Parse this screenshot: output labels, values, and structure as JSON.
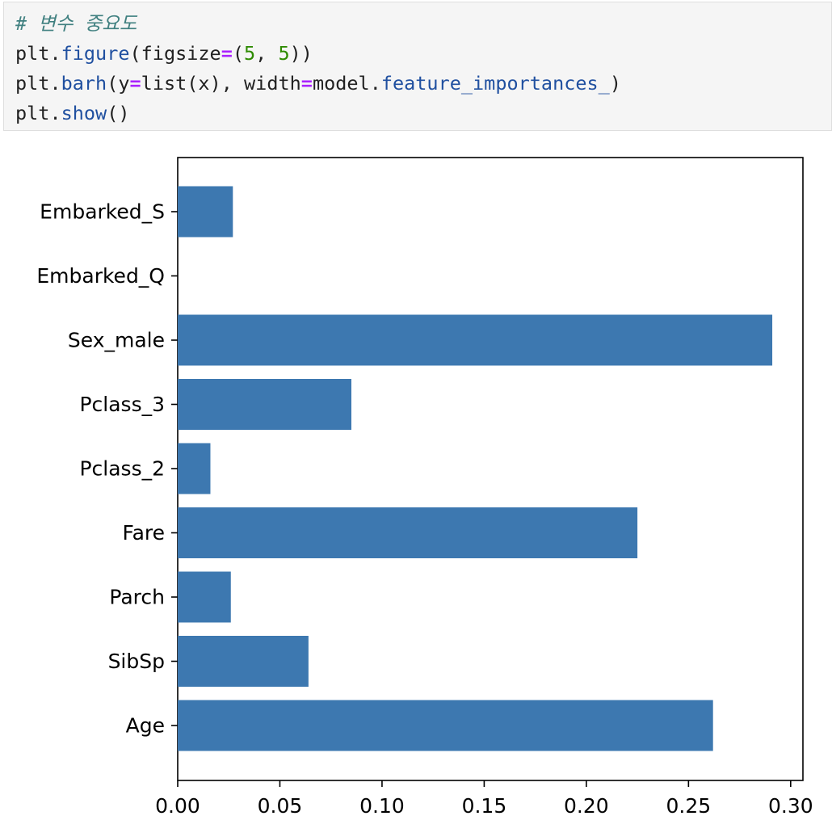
{
  "code_cell": {
    "lines": [
      [
        {
          "t": "comment",
          "v": "# 변수 중요도"
        }
      ],
      [
        {
          "t": "name",
          "v": "plt"
        },
        {
          "t": "punc",
          "v": "."
        },
        {
          "t": "attr",
          "v": "figure"
        },
        {
          "t": "punc",
          "v": "("
        },
        {
          "t": "name",
          "v": "figsize"
        },
        {
          "t": "op",
          "v": "="
        },
        {
          "t": "punc",
          "v": "("
        },
        {
          "t": "num",
          "v": "5"
        },
        {
          "t": "punc",
          "v": ", "
        },
        {
          "t": "num",
          "v": "5"
        },
        {
          "t": "punc",
          "v": "))"
        }
      ],
      [
        {
          "t": "name",
          "v": "plt"
        },
        {
          "t": "punc",
          "v": "."
        },
        {
          "t": "attr",
          "v": "barh"
        },
        {
          "t": "punc",
          "v": "("
        },
        {
          "t": "name",
          "v": "y"
        },
        {
          "t": "op",
          "v": "="
        },
        {
          "t": "name",
          "v": "list"
        },
        {
          "t": "punc",
          "v": "("
        },
        {
          "t": "name",
          "v": "x"
        },
        {
          "t": "punc",
          "v": "), "
        },
        {
          "t": "name",
          "v": "width"
        },
        {
          "t": "op",
          "v": "="
        },
        {
          "t": "name",
          "v": "model"
        },
        {
          "t": "punc",
          "v": "."
        },
        {
          "t": "attr",
          "v": "feature_importances_"
        },
        {
          "t": "punc",
          "v": ")"
        }
      ],
      [
        {
          "t": "name",
          "v": "plt"
        },
        {
          "t": "punc",
          "v": "."
        },
        {
          "t": "attr",
          "v": "show"
        },
        {
          "t": "punc",
          "v": "()"
        }
      ]
    ]
  },
  "chart_data": {
    "type": "bar",
    "orientation": "horizontal",
    "categories": [
      "Age",
      "SibSp",
      "Parch",
      "Fare",
      "Pclass_2",
      "Pclass_3",
      "Sex_male",
      "Embarked_Q",
      "Embarked_S"
    ],
    "values": [
      0.262,
      0.064,
      0.026,
      0.225,
      0.016,
      0.085,
      0.291,
      0.0,
      0.027
    ],
    "xticks": [
      "0.00",
      "0.05",
      "0.10",
      "0.15",
      "0.20",
      "0.25",
      "0.30"
    ],
    "xlim": [
      0,
      0.306
    ],
    "bar_color": "#3d78b0",
    "grid": false
  }
}
